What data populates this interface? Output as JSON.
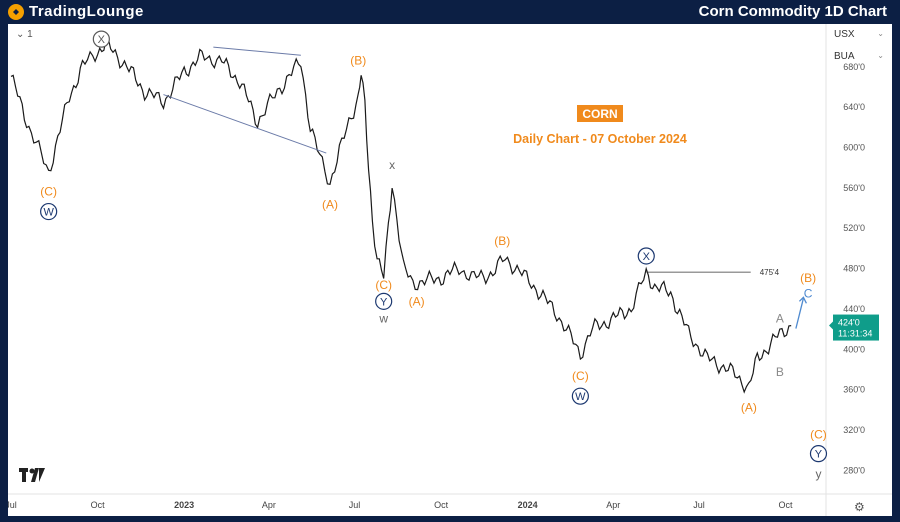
{
  "header": {
    "brand_part1": "TradingLounge",
    "brand_part2": "",
    "title": "Corn Commodity 1D Chart"
  },
  "toolbar": {
    "interval_label": "1",
    "units": [
      "USX",
      "BUA"
    ]
  },
  "chart_data": {
    "type": "line",
    "symbol_badge": "CORN",
    "subtitle": "Daily Chart - 07 October 2024",
    "x_tick_labels": [
      "Jul",
      "Oct",
      "2023",
      "Apr",
      "Jul",
      "Oct",
      "2024",
      "Apr",
      "Jul",
      "Oct"
    ],
    "y_tick_labels": [
      "680'0",
      "640'0",
      "600'0",
      "560'0",
      "520'0",
      "480'0",
      "440'0",
      "400'0",
      "360'0",
      "320'0",
      "280'0"
    ],
    "y_ticks": [
      680,
      640,
      600,
      560,
      520,
      480,
      440,
      400,
      360,
      320,
      280
    ],
    "ylim": [
      256,
      720
    ],
    "xlim": [
      "2022-07-01",
      "2024-11-13"
    ],
    "price_path": [
      [
        "2022-07-01",
        670
      ],
      [
        "2022-07-20",
        620
      ],
      [
        "2022-08-10",
        575
      ],
      [
        "2022-09-01",
        650
      ],
      [
        "2022-09-15",
        680
      ],
      [
        "2022-10-01",
        695
      ],
      [
        "2022-10-10",
        702
      ],
      [
        "2022-11-01",
        680
      ],
      [
        "2022-11-20",
        655
      ],
      [
        "2022-12-10",
        645
      ],
      [
        "2023-01-01",
        675
      ],
      [
        "2023-01-20",
        690
      ],
      [
        "2023-02-10",
        685
      ],
      [
        "2023-03-01",
        665
      ],
      [
        "2023-03-20",
        625
      ],
      [
        "2023-04-10",
        655
      ],
      [
        "2023-05-05",
        685
      ],
      [
        "2023-05-15",
        620
      ],
      [
        "2023-05-25",
        590
      ],
      [
        "2023-06-05",
        565
      ],
      [
        "2023-06-15",
        595
      ],
      [
        "2023-06-25",
        625
      ],
      [
        "2023-07-05",
        650
      ],
      [
        "2023-07-08",
        672
      ],
      [
        "2023-07-12",
        640
      ],
      [
        "2023-07-16",
        580
      ],
      [
        "2023-07-20",
        530
      ],
      [
        "2023-07-25",
        490
      ],
      [
        "2023-08-01",
        470
      ],
      [
        "2023-08-06",
        520
      ],
      [
        "2023-08-10",
        565
      ],
      [
        "2023-08-15",
        530
      ],
      [
        "2023-08-22",
        480
      ],
      [
        "2023-09-01",
        465
      ],
      [
        "2023-10-01",
        470
      ],
      [
        "2023-10-20",
        480
      ],
      [
        "2023-11-05",
        470
      ],
      [
        "2023-11-25",
        475
      ],
      [
        "2023-12-08",
        490
      ],
      [
        "2024-01-05",
        465
      ],
      [
        "2024-02-01",
        435
      ],
      [
        "2024-02-26",
        395
      ],
      [
        "2024-03-10",
        420
      ],
      [
        "2024-04-01",
        430
      ],
      [
        "2024-04-20",
        440
      ],
      [
        "2024-05-06",
        475
      ],
      [
        "2024-05-15",
        462
      ],
      [
        "2024-06-01",
        455
      ],
      [
        "2024-06-20",
        415
      ],
      [
        "2024-07-10",
        390
      ],
      [
        "2024-08-01",
        380
      ],
      [
        "2024-08-23",
        362
      ],
      [
        "2024-09-01",
        390
      ],
      [
        "2024-09-20",
        410
      ],
      [
        "2024-10-07",
        424
      ]
    ],
    "current_price_label": "424'0",
    "countdown_label": "11:31:34",
    "level_label": "475'4",
    "wave_labels": [
      {
        "text": "X",
        "style": "circle",
        "color": "#5a5a5a",
        "date": "2022-10-05",
        "price": 707
      },
      {
        "text": "(B)",
        "style": "plain",
        "color": "#f08a1c",
        "date": "2023-07-05",
        "price": 686
      },
      {
        "text": "(C)",
        "style": "plain",
        "color": "#f08a1c",
        "date": "2022-08-10",
        "price": 556
      },
      {
        "text": "W",
        "style": "circle",
        "color": "#1c3870",
        "date": "2022-08-10",
        "price": 536
      },
      {
        "text": "(A)",
        "style": "plain",
        "color": "#f08a1c",
        "date": "2023-06-05",
        "price": 543
      },
      {
        "text": "x",
        "style": "plain",
        "color": "#666666",
        "date": "2023-08-10",
        "price": 582
      },
      {
        "text": "(C)",
        "style": "plain",
        "color": "#f08a1c",
        "date": "2023-08-01",
        "price": 463
      },
      {
        "text": "Y",
        "style": "circle",
        "color": "#1c3870",
        "date": "2023-08-01",
        "price": 447
      },
      {
        "text": "w",
        "style": "plain",
        "color": "#666666",
        "date": "2023-08-01",
        "price": 430
      },
      {
        "text": "(A)",
        "style": "plain",
        "color": "#f08a1c",
        "date": "2023-09-05",
        "price": 447
      },
      {
        "text": "(B)",
        "style": "plain",
        "color": "#f08a1c",
        "date": "2023-12-05",
        "price": 507
      },
      {
        "text": "(C)",
        "style": "plain",
        "color": "#f08a1c",
        "date": "2024-02-26",
        "price": 373
      },
      {
        "text": "W",
        "style": "circle",
        "color": "#1c3870",
        "date": "2024-02-26",
        "price": 353
      },
      {
        "text": "X",
        "style": "circle",
        "color": "#1c3870",
        "date": "2024-05-06",
        "price": 492
      },
      {
        "text": "A",
        "style": "plain",
        "color": "#8a8a8a",
        "date": "2024-09-25",
        "price": 430
      },
      {
        "text": "B",
        "style": "plain",
        "color": "#8a8a8a",
        "date": "2024-09-25",
        "price": 377
      },
      {
        "text": "(A)",
        "style": "plain",
        "color": "#f08a1c",
        "date": "2024-08-23",
        "price": 342
      },
      {
        "text": "(B)",
        "style": "plain",
        "color": "#f08a1c",
        "date": "2024-10-25",
        "price": 470
      },
      {
        "text": "C",
        "style": "plain",
        "color": "#4f8ad0",
        "date": "2024-10-25",
        "price": 455
      },
      {
        "text": "(C)",
        "style": "plain",
        "color": "#f08a1c",
        "date": "2024-11-05",
        "price": 315
      },
      {
        "text": "Y",
        "style": "circle",
        "color": "#1c3870",
        "date": "2024-11-05",
        "price": 296
      },
      {
        "text": "y",
        "style": "plain",
        "color": "#666666",
        "date": "2024-11-05",
        "price": 276
      }
    ],
    "trendlines": [
      {
        "from": [
          "2022-12-10",
          652
        ],
        "to": [
          "2023-06-01",
          594
        ]
      },
      {
        "from": [
          "2023-02-01",
          699
        ],
        "to": [
          "2023-05-05",
          691
        ]
      }
    ],
    "level_line": {
      "from": [
        "2024-05-06",
        476
      ],
      "to": [
        "2024-08-25",
        476
      ]
    },
    "arrow": {
      "from": [
        "2024-10-12",
        420
      ],
      "to": [
        "2024-10-20",
        450
      ]
    },
    "colors": {
      "price": "#1a1a1a",
      "current": "#0f9d8a",
      "wave_orange": "#f08a1c",
      "wave_navy": "#1c3870",
      "trendline": "#6b7ba8",
      "arrow": "#4f8ad0"
    }
  }
}
